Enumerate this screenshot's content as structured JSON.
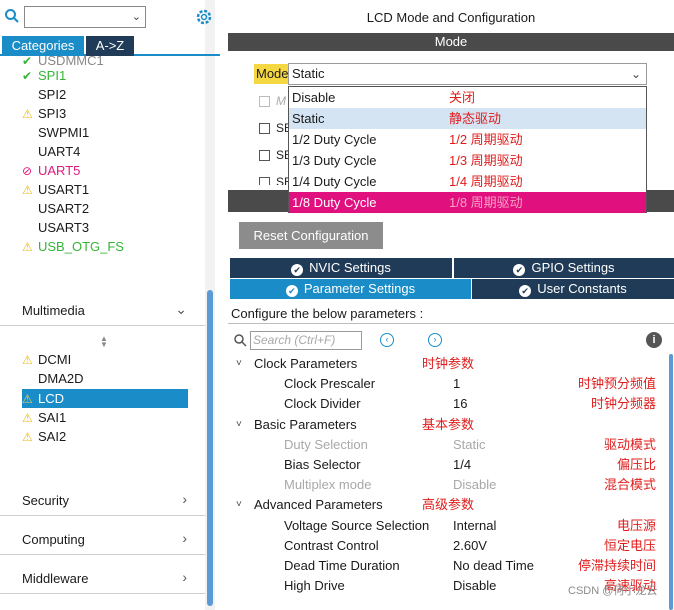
{
  "left": {
    "tabs": [
      "Categories",
      "A->Z"
    ],
    "truncated_item": "USDMMC1",
    "items": [
      {
        "label": "SPI1",
        "icon": "check",
        "style": "green"
      },
      {
        "label": "SPI2",
        "icon": "",
        "style": "dark"
      },
      {
        "label": "SPI3",
        "icon": "warning",
        "style": "dark"
      },
      {
        "label": "SWPMI1",
        "icon": "",
        "style": "dark"
      },
      {
        "label": "UART4",
        "icon": "",
        "style": "dark"
      },
      {
        "label": "UART5",
        "icon": "blocked",
        "style": "pink"
      },
      {
        "label": "USART1",
        "icon": "warning",
        "style": "dark"
      },
      {
        "label": "USART2",
        "icon": "",
        "style": "dark"
      },
      {
        "label": "USART3",
        "icon": "",
        "style": "dark"
      },
      {
        "label": "USB_OTG_FS",
        "icon": "warning",
        "style": "green"
      }
    ],
    "multimedia": {
      "label": "Multimedia",
      "items": [
        {
          "label": "DCMI",
          "icon": "warning"
        },
        {
          "label": "DMA2D",
          "icon": ""
        },
        {
          "label": "LCD",
          "icon": "warning",
          "selected": true
        },
        {
          "label": "SAI1",
          "icon": "warning"
        },
        {
          "label": "SAI2",
          "icon": "warning"
        }
      ]
    },
    "sections": [
      "Security",
      "Computing",
      "Middleware"
    ]
  },
  "right": {
    "title": "LCD Mode and Configuration",
    "mode_header": "Mode",
    "mode_label": "Mode",
    "mode_value": "Static",
    "ghost_rows": [
      "M",
      "SE",
      "SE",
      "SE"
    ],
    "options": [
      {
        "label": "Disable",
        "zh": "关闭"
      },
      {
        "label": "Static",
        "zh": "静态驱动"
      },
      {
        "label": "1/2 Duty Cycle",
        "zh": "1/2 周期驱动"
      },
      {
        "label": "1/3 Duty Cycle",
        "zh": "1/3 周期驱动"
      },
      {
        "label": "1/4 Duty Cycle",
        "zh": "1/4 周期驱动"
      },
      {
        "label": "1/8 Duty Cycle",
        "zh": "1/8 周期驱动"
      }
    ],
    "reset_label": "Reset Configuration",
    "tabs_top": [
      "NVIC Settings",
      "GPIO Settings"
    ],
    "tabs_bottom": [
      "Parameter Settings",
      "User Constants"
    ],
    "config_line": "Configure the below parameters :",
    "search_placeholder": "Search (Ctrl+F)",
    "groups": [
      {
        "name": "Clock Parameters",
        "zh": "时钟参数",
        "params": [
          {
            "name": "Clock Prescaler",
            "value": "1",
            "zh": "时钟预分频值",
            "muted": false
          },
          {
            "name": "Clock Divider",
            "value": "16",
            "zh": "时钟分频器",
            "muted": false
          }
        ]
      },
      {
        "name": "Basic Parameters",
        "zh": "基本参数",
        "params": [
          {
            "name": "Duty Selection",
            "value": "Static",
            "zh": "驱动模式",
            "muted": true
          },
          {
            "name": "Bias Selector",
            "value": "1/4",
            "zh": "偏压比",
            "muted": false
          },
          {
            "name": "Multiplex mode",
            "value": "Disable",
            "zh": "混合模式",
            "muted": true
          }
        ]
      },
      {
        "name": "Advanced Parameters",
        "zh": "高级参数",
        "params": [
          {
            "name": "Voltage Source Selection",
            "value": "Internal",
            "zh": "电压源",
            "muted": false
          },
          {
            "name": "Contrast Control",
            "value": "2.60V",
            "zh": "恒定电压",
            "muted": false
          },
          {
            "name": "Dead Time Duration",
            "value": "No dead Time",
            "zh": "停滞持续时间",
            "muted": false
          },
          {
            "name": "High Drive",
            "value": "Disable",
            "zh": "高速驱动",
            "muted": false
          }
        ]
      }
    ],
    "watermark": "CSDN @何小龙云"
  },
  "colors": {
    "accent": "#1a8dc8",
    "dark_tab": "#1f3b57",
    "selected_option": "#e0107f",
    "annotation": "#e01c1c"
  }
}
